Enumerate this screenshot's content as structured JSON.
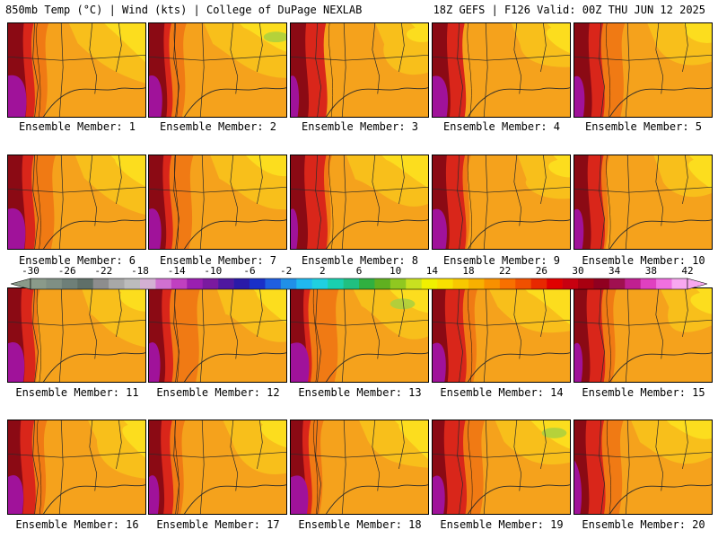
{
  "header": {
    "left": "850mb Temp (°C) | Wind (kts) | College of DuPage NEXLAB",
    "right": "18Z GEFS | F126 Valid: 00Z THU JUN 12 2025"
  },
  "members": [
    "Ensemble Member: 1",
    "Ensemble Member: 2",
    "Ensemble Member: 3",
    "Ensemble Member: 4",
    "Ensemble Member: 5",
    "Ensemble Member: 6",
    "Ensemble Member: 7",
    "Ensemble Member: 8",
    "Ensemble Member: 9",
    "Ensemble Member: 10",
    "Ensemble Member: 11",
    "Ensemble Member: 12",
    "Ensemble Member: 13",
    "Ensemble Member: 14",
    "Ensemble Member: 15",
    "Ensemble Member: 16",
    "Ensemble Member: 17",
    "Ensemble Member: 18",
    "Ensemble Member: 19",
    "Ensemble Member: 20"
  ],
  "colorbar": {
    "ticks": [
      "-30",
      "-26",
      "-22",
      "-18",
      "-14",
      "-10",
      "-6",
      "-2",
      "2",
      "6",
      "10",
      "14",
      "18",
      "22",
      "26",
      "30",
      "34",
      "38",
      "42"
    ],
    "colors": [
      "#8a9a8a",
      "#7f8f84",
      "#6e7f78",
      "#5f6f68",
      "#8d8d8d",
      "#a8a8a8",
      "#bcbcbc",
      "#d3b0d3",
      "#d070d0",
      "#c040c0",
      "#9a1fb0",
      "#7a1aa0",
      "#4f18a0",
      "#2a1aa8",
      "#1a30c8",
      "#1f5fe0",
      "#2090e8",
      "#20b8f0",
      "#20d0e0",
      "#1ad0b0",
      "#20c080",
      "#30b040",
      "#60b020",
      "#90c820",
      "#c8e020",
      "#f0f000",
      "#f8e000",
      "#f8c800",
      "#f8b000",
      "#f89000",
      "#f87000",
      "#f05000",
      "#e82800",
      "#e00000",
      "#c80010",
      "#a80010",
      "#900020",
      "#a01050",
      "#c02090",
      "#e040c0",
      "#f070e0",
      "#f8a8f0"
    ]
  },
  "palette": {
    "purple": "#a0129a",
    "darkred": "#8b0a14",
    "red": "#d9261a",
    "orange": "#f07a14",
    "lightorange": "#f5a21c",
    "gold": "#f8c21c",
    "yellow": "#fde21e",
    "green": "#a8d040"
  }
}
